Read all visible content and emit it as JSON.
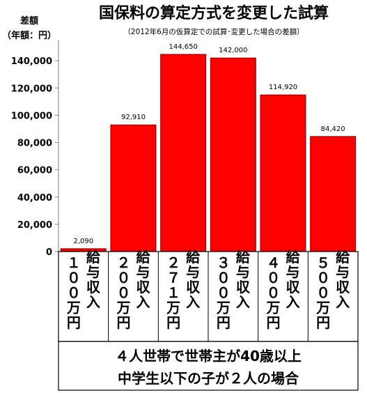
{
  "chart_data": {
    "type": "bar",
    "title": "国保料の算定方式を変更した試算",
    "subtitle": "（2012年6月の仮算定での試算･変更した場合の差額）",
    "ylabel": "差額",
    "yunit": "（年額：円）",
    "ylim": [
      0,
      160000
    ],
    "yticks": [
      0,
      20000,
      40000,
      60000,
      80000,
      100000,
      120000,
      140000
    ],
    "ytick_labels": [
      "0",
      "20,000",
      "40,000",
      "60,000",
      "80,000",
      "100,000",
      "120,000",
      "140,000"
    ],
    "categories": [
      {
        "line1": "１００万円",
        "line2": "給与収入"
      },
      {
        "line1": "２００万円",
        "line2": "給与収入"
      },
      {
        "line1": "２７１万円",
        "line2": "給与収入"
      },
      {
        "line1": "３００万円",
        "line2": "給与収入"
      },
      {
        "line1": "４００万円",
        "line2": "給与収入"
      },
      {
        "line1": "５００万円",
        "line2": "給与収入"
      }
    ],
    "values": [
      2090,
      92910,
      144650,
      142000,
      114920,
      84420
    ],
    "value_labels": [
      "2,090",
      "92,910",
      "144,650",
      "142,000",
      "114,920",
      "84,420"
    ],
    "bar_color": "#ff0000",
    "bar_edge_color": "#800000",
    "grid": false
  },
  "note": {
    "line1": "４人世帯で世帯主が40歳以上",
    "line2": "中学生以下の子が２人の場合"
  }
}
